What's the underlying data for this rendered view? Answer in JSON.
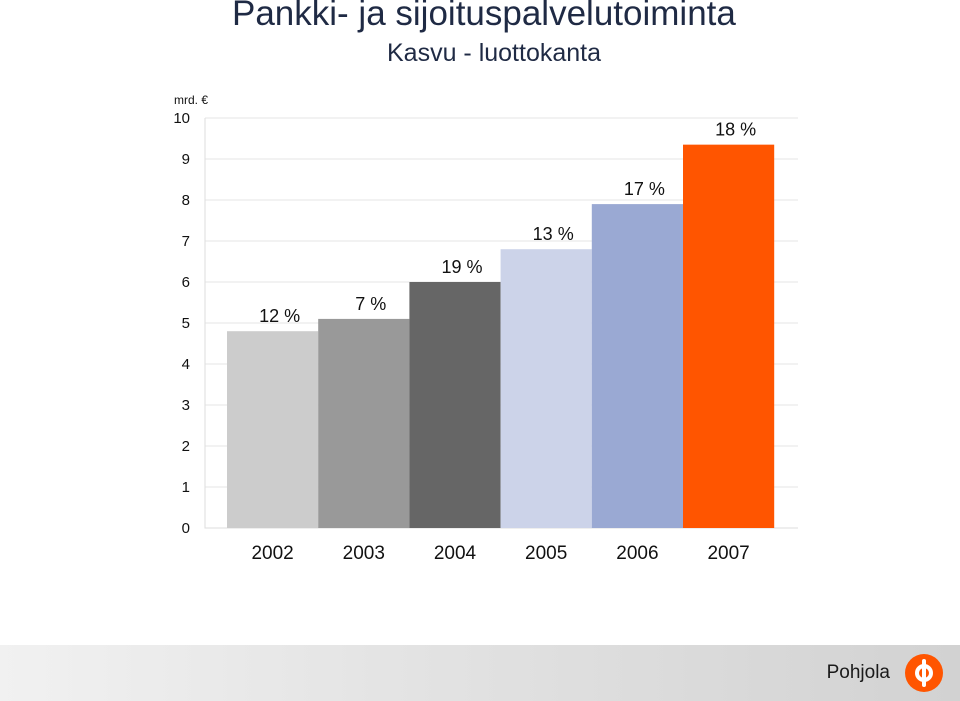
{
  "header": {
    "title": "Pankki- ja sijoituspalvelutoiminta",
    "subtitle": "Kasvu - luottokanta"
  },
  "chart_data": {
    "type": "bar",
    "unit_label": "mrd. €",
    "categories": [
      "2002",
      "2003",
      "2004",
      "2005",
      "2006",
      "2007"
    ],
    "values": [
      4.8,
      5.1,
      6.0,
      6.8,
      7.9,
      9.35
    ],
    "data_labels": [
      "12 %",
      "7 %",
      "19 %",
      "13 %",
      "17 %",
      "18 %"
    ],
    "bar_colors": [
      "#cccccc",
      "#999999",
      "#666666",
      "#ccd3e9",
      "#9aa9d3",
      "#ff5500"
    ],
    "ylim": [
      0,
      10
    ],
    "yticks": [
      "0",
      "1",
      "2",
      "3",
      "4",
      "5",
      "6",
      "7",
      "8",
      "9",
      "10"
    ],
    "grid": true
  },
  "footer": {
    "brand": "Pohjola",
    "logo_color": "#ff5500"
  }
}
